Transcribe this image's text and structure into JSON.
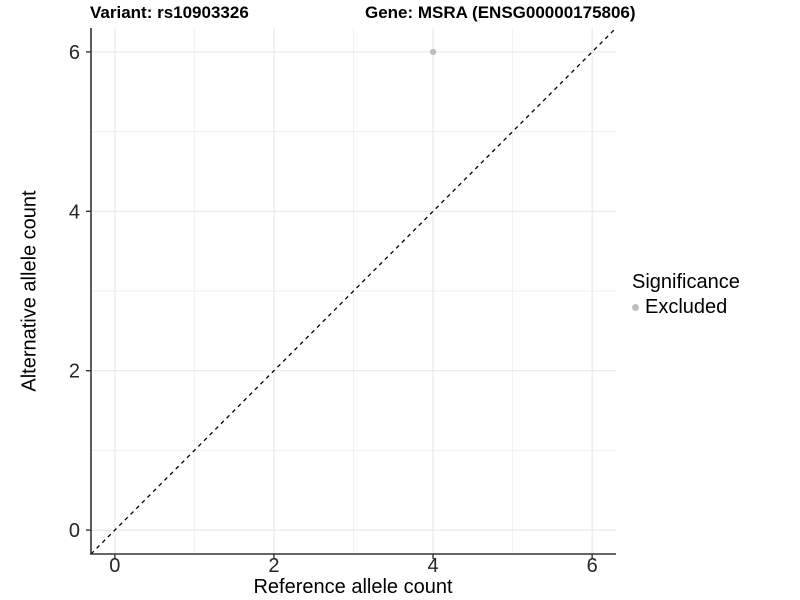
{
  "figure": {
    "titles": [
      "Variant: rs10903326",
      "Gene: MSRA (ENSG00000175806)"
    ]
  },
  "chart_data": {
    "type": "scatter",
    "title_left": "Variant: rs10903326",
    "title_right": "Gene: MSRA (ENSG00000175806)",
    "xlabel": "Reference allele count",
    "ylabel": "Alternative allele count",
    "xlim": [
      -0.3,
      6.3
    ],
    "ylim": [
      -0.3,
      6.3
    ],
    "x_ticks": [
      0,
      2,
      4,
      6
    ],
    "y_ticks": [
      0,
      2,
      4,
      6
    ],
    "x_minor_ticks": [
      1,
      3,
      5
    ],
    "y_minor_ticks": [
      1,
      3,
      5
    ],
    "grid": "major and minor gridlines, white background",
    "identity_line": {
      "style": "dashed",
      "color": "#000000",
      "from": -0.3,
      "to": 6.3
    },
    "series": [
      {
        "name": "Excluded",
        "color": "#bebebe",
        "points": [
          {
            "x": 4,
            "y": 6
          }
        ]
      }
    ],
    "legend": {
      "title": "Significance",
      "position": "right",
      "entries": [
        {
          "label": "Excluded",
          "color": "#bebebe",
          "marker": "circle"
        }
      ]
    }
  },
  "colors": {
    "background": "#ffffff",
    "axis_line": "#333333",
    "tick_mark": "#333333",
    "tick_label": "#262626",
    "grid_major": "#e5e5e5",
    "grid_minor": "#f1f1f1",
    "identity_line": "#000000",
    "point": "#bebebe",
    "title_text": "#000000"
  }
}
